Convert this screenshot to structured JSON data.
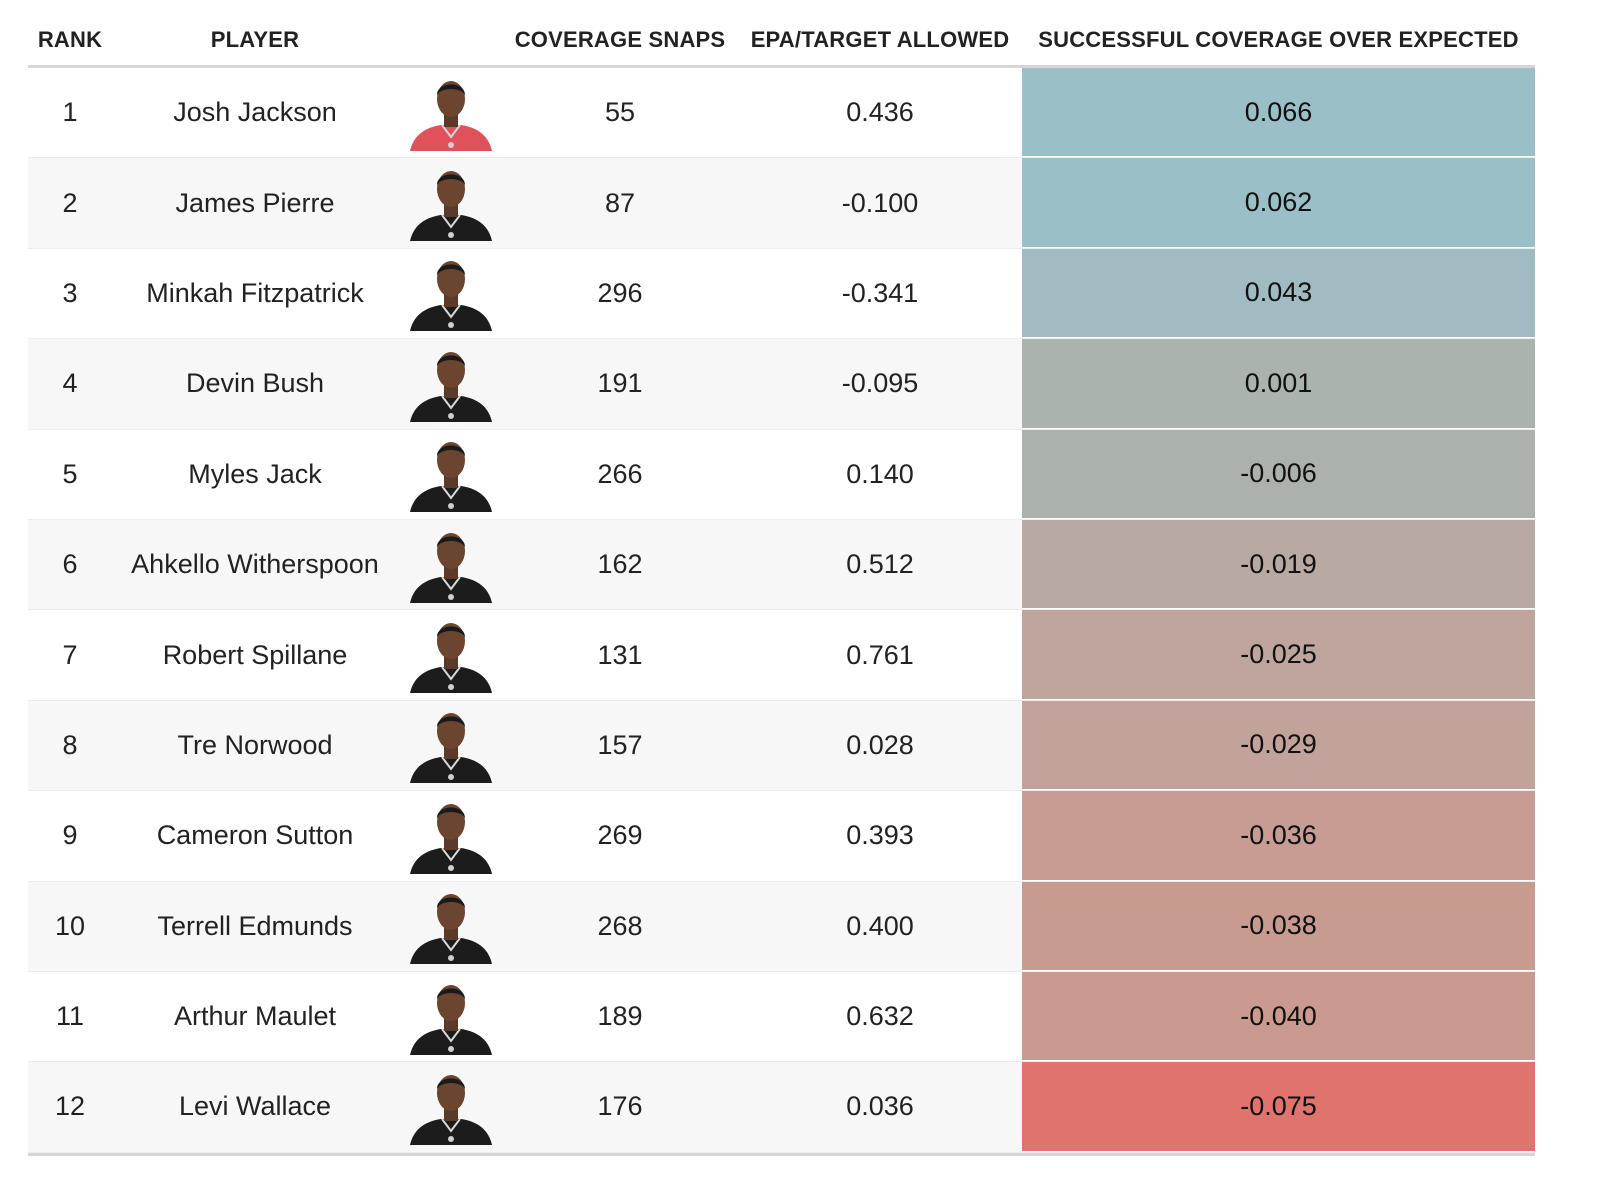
{
  "columns": {
    "rank": "RANK",
    "player": "PLAYER",
    "coverage_snaps": "COVERAGE SNAPS",
    "epa_target_allowed": "EPA/TARGET ALLOWED",
    "successful_coverage_over_expected": "SUCCESSFUL COVERAGE OVER EXPECTED"
  },
  "chart_data": {
    "type": "table",
    "columns": [
      "RANK",
      "PLAYER",
      "COVERAGE SNAPS",
      "EPA/TARGET ALLOWED",
      "SUCCESSFUL COVERAGE OVER EXPECTED"
    ],
    "rows": [
      {
        "rank": "1",
        "player": "Josh Jackson",
        "snaps": "55",
        "epa": "0.436",
        "scoe": "0.066",
        "scoe_value": 0.066,
        "color": "#9abfc6",
        "jersey": "#e0515b"
      },
      {
        "rank": "2",
        "player": "James Pierre",
        "snaps": "87",
        "epa": "-0.100",
        "scoe": "0.062",
        "scoe_value": 0.062,
        "color": "#9bbfc6",
        "jersey": "#1c1c1c"
      },
      {
        "rank": "3",
        "player": "Minkah Fitzpatrick",
        "snaps": "296",
        "epa": "-0.341",
        "scoe": "0.043",
        "scoe_value": 0.043,
        "color": "#a0bcc2",
        "jersey": "#1c1c1c"
      },
      {
        "rank": "4",
        "player": "Devin Bush",
        "snaps": "191",
        "epa": "-0.095",
        "scoe": "0.001",
        "scoe_value": 0.001,
        "color": "#aab4ae",
        "jersey": "#1c1c1c"
      },
      {
        "rank": "5",
        "player": "Myles Jack",
        "snaps": "266",
        "epa": "0.140",
        "scoe": "-0.006",
        "scoe_value": -0.006,
        "color": "#abb2ab",
        "jersey": "#1c1c1c"
      },
      {
        "rank": "6",
        "player": "Ahkello Witherspoon",
        "snaps": "162",
        "epa": "0.512",
        "scoe": "-0.019",
        "scoe_value": -0.019,
        "color": "#b8aaa2",
        "jersey": "#1c1c1c"
      },
      {
        "rank": "7",
        "player": "Robert Spillane",
        "snaps": "131",
        "epa": "0.761",
        "scoe": "-0.025",
        "scoe_value": -0.025,
        "color": "#bea69f",
        "jersey": "#1c1c1c"
      },
      {
        "rank": "8",
        "player": "Tre Norwood",
        "snaps": "157",
        "epa": "0.028",
        "scoe": "-0.029",
        "scoe_value": -0.029,
        "color": "#c1a39b",
        "jersey": "#1c1c1c"
      },
      {
        "rank": "9",
        "player": "Cameron Sutton",
        "snaps": "269",
        "epa": "0.393",
        "scoe": "-0.036",
        "scoe_value": -0.036,
        "color": "#c79c93",
        "jersey": "#1c1c1c"
      },
      {
        "rank": "10",
        "player": "Terrell Edmunds",
        "snaps": "268",
        "epa": "0.400",
        "scoe": "-0.038",
        "scoe_value": -0.038,
        "color": "#c89b91",
        "jersey": "#1c1c1c"
      },
      {
        "rank": "11",
        "player": "Arthur Maulet",
        "snaps": "189",
        "epa": "0.632",
        "scoe": "-0.040",
        "scoe_value": -0.04,
        "color": "#ca998f",
        "jersey": "#1c1c1c"
      },
      {
        "rank": "12",
        "player": "Levi Wallace",
        "snaps": "176",
        "epa": "0.036",
        "scoe": "-0.075",
        "scoe_value": -0.075,
        "color": "#e0736d",
        "jersey": "#1c1c1c"
      }
    ]
  }
}
